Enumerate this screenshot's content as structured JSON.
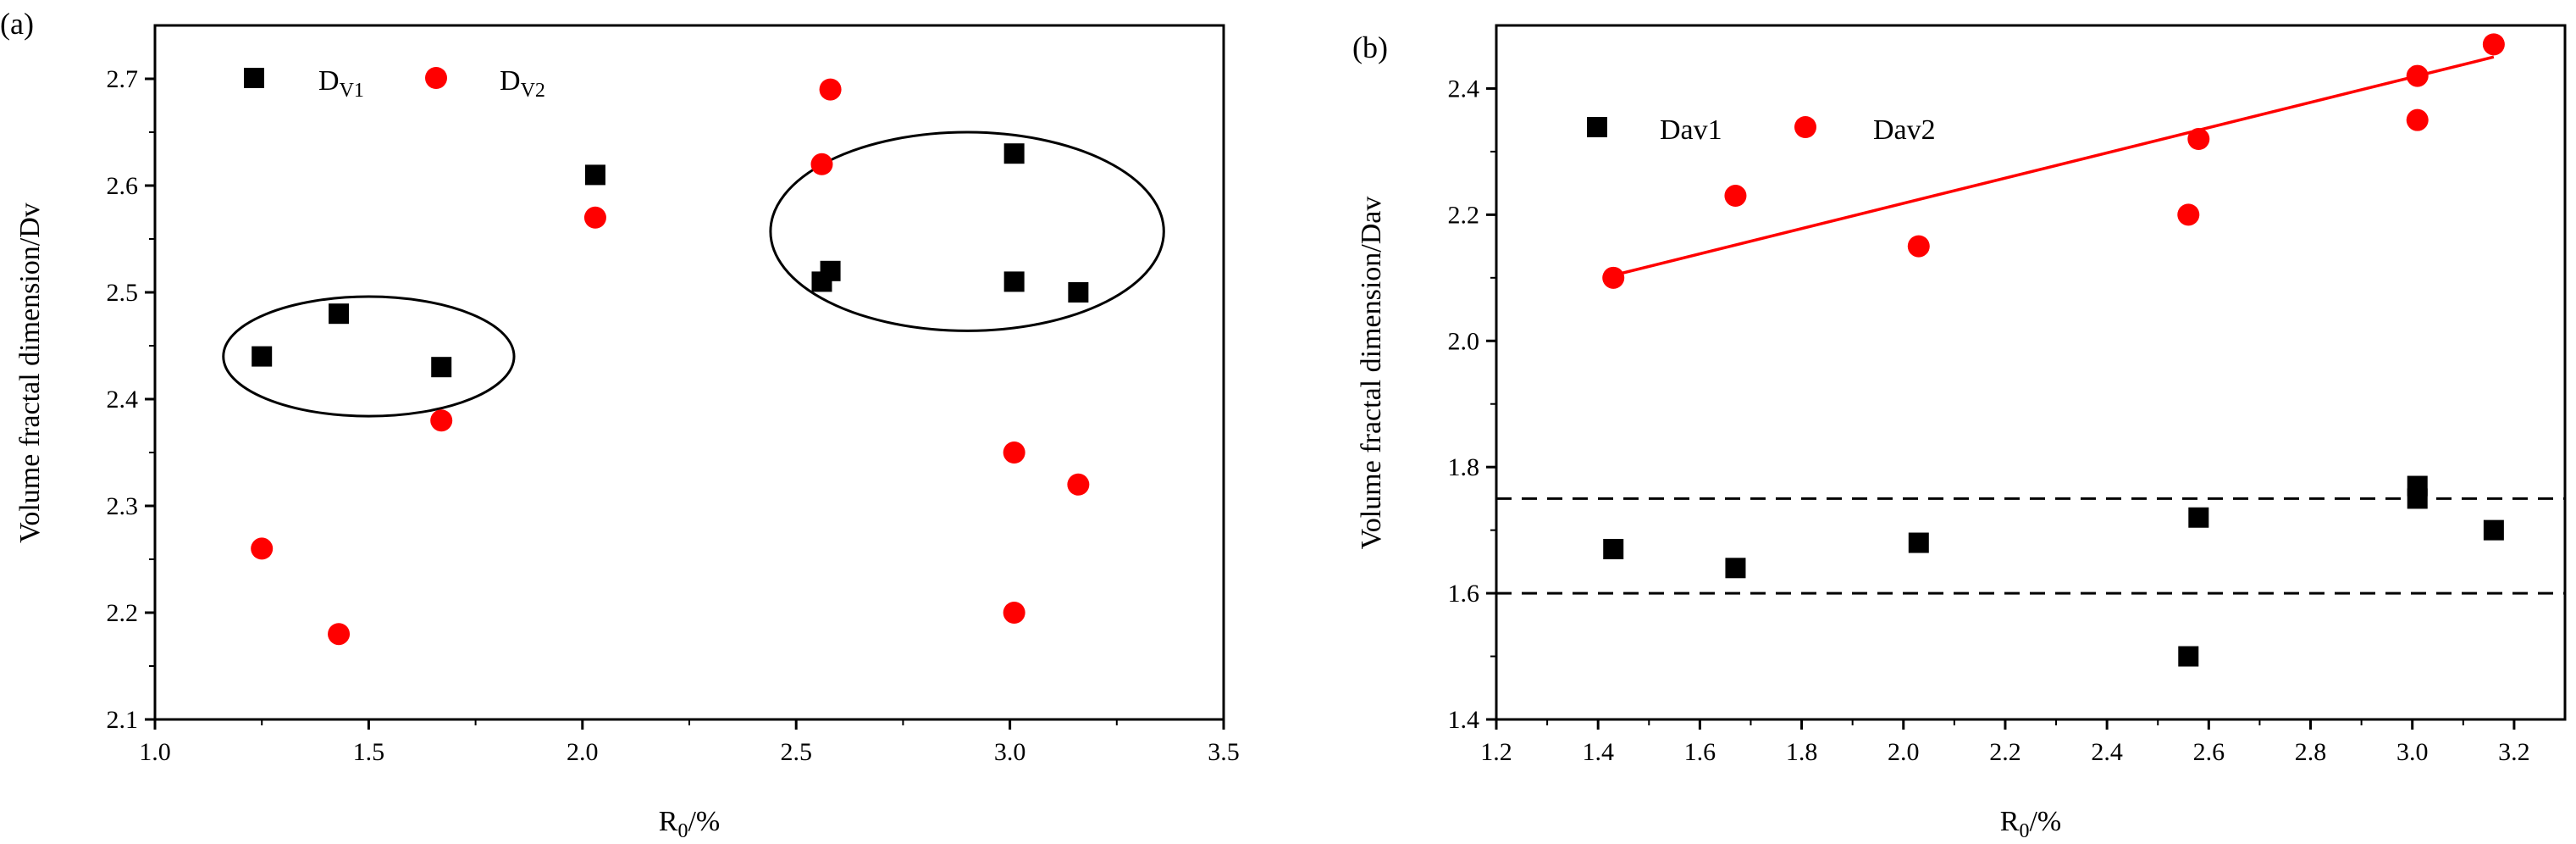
{
  "chart_data": [
    {
      "panel": "(a)",
      "type": "scatter",
      "xlabel": "R",
      "xlabel_sub": "0",
      "xlabel_suffix": "/%",
      "ylabel": "Volume fractal dimension/Dv",
      "xlim": [
        1.0,
        3.5
      ],
      "ylim": [
        2.1,
        2.75
      ],
      "xticks": [
        "1.0",
        "1.5",
        "2.0",
        "2.5",
        "3.0",
        "3.5"
      ],
      "yticks": [
        "2.1",
        "2.2",
        "2.3",
        "2.4",
        "2.5",
        "2.6",
        "2.7"
      ],
      "legend_position": "top-left",
      "series": [
        {
          "name": "D",
          "name_sub": "V1",
          "marker": "square",
          "color": "#000000",
          "x": [
            1.25,
            1.43,
            1.67,
            2.03,
            2.56,
            2.58,
            3.01,
            3.01,
            3.16
          ],
          "y": [
            2.44,
            2.48,
            2.43,
            2.61,
            2.51,
            2.52,
            2.63,
            2.51,
            2.5
          ]
        },
        {
          "name": "D",
          "name_sub": "V2",
          "marker": "circle",
          "color": "#ff0000",
          "x": [
            1.25,
            1.43,
            1.67,
            2.03,
            2.56,
            2.58,
            3.01,
            3.01,
            3.16
          ],
          "y": [
            2.26,
            2.18,
            2.38,
            2.57,
            2.62,
            2.69,
            2.35,
            2.2,
            2.32
          ]
        }
      ],
      "annotations": [
        {
          "type": "ellipse",
          "center": [
            1.5,
            2.44
          ],
          "rx": 0.34,
          "ry": 0.056
        },
        {
          "type": "ellipse",
          "center": [
            2.9,
            2.557
          ],
          "rx": 0.46,
          "ry": 0.093
        }
      ]
    },
    {
      "panel": "(b)",
      "type": "scatter",
      "xlabel": "R",
      "xlabel_sub": "0",
      "xlabel_suffix": "/%",
      "ylabel": "Volume fractal dimension/Dav",
      "xlim": [
        1.2,
        3.3
      ],
      "ylim": [
        1.4,
        2.5
      ],
      "xticks": [
        "1.2",
        "1.4",
        "1.6",
        "1.8",
        "2.0",
        "2.2",
        "2.4",
        "2.6",
        "2.8",
        "3.0",
        "3.2"
      ],
      "yticks": [
        "1.4",
        "1.6",
        "1.8",
        "2.0",
        "2.2",
        "2.4"
      ],
      "legend_position": "top-left",
      "series": [
        {
          "name": "Dav1",
          "marker": "square",
          "color": "#000000",
          "x": [
            1.43,
            1.67,
            2.03,
            2.56,
            2.58,
            3.01,
            3.01,
            3.16
          ],
          "y": [
            1.67,
            1.64,
            1.68,
            1.5,
            1.72,
            1.77,
            1.75,
            1.7
          ]
        },
        {
          "name": "Dav2",
          "marker": "circle",
          "color": "#ff0000",
          "x": [
            1.43,
            1.67,
            2.03,
            2.56,
            2.58,
            3.01,
            3.01,
            3.16
          ],
          "y": [
            2.1,
            2.23,
            2.15,
            2.2,
            2.32,
            2.42,
            2.35,
            2.47
          ]
        }
      ],
      "fit_line": {
        "color": "#ff0000",
        "x": [
          1.41,
          3.16
        ],
        "y": [
          2.1,
          2.45
        ]
      },
      "reference_lines": [
        {
          "y": 1.75,
          "style": "dashed",
          "color": "#000000"
        },
        {
          "y": 1.6,
          "style": "dashed",
          "color": "#000000"
        }
      ]
    }
  ]
}
